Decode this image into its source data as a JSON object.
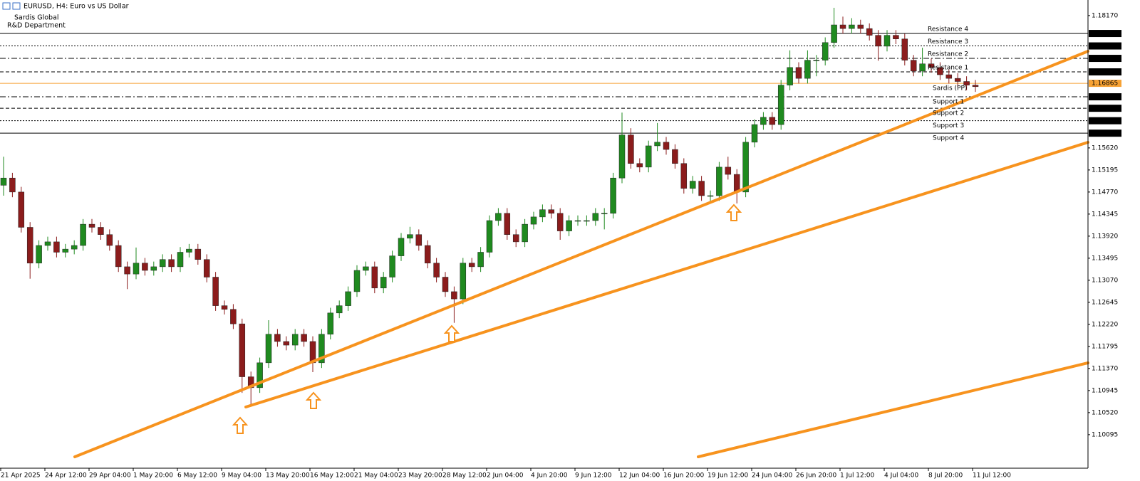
{
  "chart_data": {
    "type": "candlestick",
    "title": "EURUSD, H4:  Euro vs US Dollar",
    "brand": "Sardis Global",
    "department": "R&D Department",
    "up_color": "#1f8a1f",
    "down_color": "#8b1c1c",
    "categories": [
      "21 Apr 2025",
      null,
      null,
      null,
      null,
      "24 Apr 12:00",
      null,
      null,
      null,
      null,
      "29 Apr 04:00",
      null,
      null,
      null,
      null,
      "1 May 20:00",
      null,
      null,
      null,
      null,
      "6 May 12:00",
      null,
      null,
      null,
      null,
      "9 May 04:00",
      null,
      null,
      null,
      null,
      "13 May 20:00",
      null,
      null,
      null,
      null,
      "16 May 12:00",
      null,
      null,
      null,
      null,
      "21 May 04:00",
      null,
      null,
      null,
      null,
      "23 May 20:00",
      null,
      null,
      null,
      null,
      "28 May 12:00",
      null,
      null,
      null,
      null,
      "2 Jun 04:00",
      null,
      null,
      null,
      null,
      "4 Jun 20:00",
      null,
      null,
      null,
      null,
      "9 Jun 12:00",
      null,
      null,
      null,
      null,
      "12 Jun 04:00",
      null,
      null,
      null,
      null,
      "16 Jun 20:00",
      null,
      null,
      null,
      null,
      "19 Jun 12:00",
      null,
      null,
      null,
      null,
      "24 Jun 04:00",
      null,
      null,
      null,
      null,
      "26 Jun 20:00",
      null,
      null,
      null,
      null,
      "1 Jul 12:00",
      null,
      null,
      null,
      null,
      "4 Jul 04:00",
      null,
      null,
      null,
      null,
      "8 Jul 20:00",
      null,
      null,
      null,
      null,
      "11 Jul 12:00"
    ],
    "open": [
      1.149,
      1.1504,
      1.1477,
      1.1409,
      1.134,
      1.1374,
      1.1381,
      1.1361,
      1.1367,
      1.1374,
      1.1415,
      1.1409,
      1.1395,
      1.1374,
      1.1333,
      1.1319,
      1.134,
      1.1326,
      1.1333,
      1.1347,
      1.1333,
      1.1361,
      1.1367,
      1.1347,
      1.1313,
      1.1258,
      1.1251,
      1.1223,
      1.1121,
      1.11,
      1.1148,
      1.1203,
      1.1189,
      1.1182,
      1.1203,
      1.1189,
      1.1148,
      1.1203,
      1.1244,
      1.1258,
      1.1285,
      1.1326,
      1.1333,
      1.1292,
      1.1313,
      1.1354,
      1.1388,
      1.1395,
      1.1374,
      1.134,
      1.1313,
      1.1285,
      1.1271,
      1.134,
      1.1333,
      1.1361,
      1.1422,
      1.1436,
      1.1395,
      1.1381,
      1.1415,
      1.1429,
      1.1443,
      1.1436,
      1.1402,
      1.1422,
      1.1422,
      1.1422,
      1.1436,
      1.1436,
      1.1504,
      1.1587,
      1.1532,
      1.1525,
      1.1566,
      1.1573,
      1.1559,
      1.1532,
      1.1484,
      1.1498,
      1.147,
      1.147,
      1.1525,
      1.1511,
      1.1477,
      1.1573,
      1.1607,
      1.1621,
      1.1607,
      1.1683,
      1.1717,
      1.1696,
      1.1731,
      1.1731,
      1.1765,
      1.1799,
      1.1792,
      1.1799,
      1.1792,
      1.1779,
      1.1758,
      1.1779,
      1.1772,
      1.1731,
      1.171,
      1.1724,
      1.1717,
      1.1703,
      1.1696,
      1.169,
      1.1683
    ],
    "high": [
      1.1545,
      1.1514,
      1.1487,
      1.1419,
      1.1384,
      1.1391,
      1.1391,
      1.1377,
      1.1384,
      1.1425,
      1.1425,
      1.1419,
      1.1405,
      1.1384,
      1.1343,
      1.137,
      1.135,
      1.1343,
      1.1357,
      1.1357,
      1.1371,
      1.1377,
      1.1377,
      1.1357,
      1.1323,
      1.1268,
      1.1261,
      1.1233,
      1.1131,
      1.1158,
      1.123,
      1.1213,
      1.1199,
      1.1213,
      1.1213,
      1.1199,
      1.1213,
      1.1254,
      1.1268,
      1.1295,
      1.1336,
      1.1343,
      1.1343,
      1.1323,
      1.1364,
      1.1398,
      1.141,
      1.1405,
      1.1384,
      1.135,
      1.1323,
      1.1295,
      1.135,
      1.135,
      1.1371,
      1.1432,
      1.1446,
      1.1446,
      1.1405,
      1.1425,
      1.1439,
      1.1453,
      1.1453,
      1.1446,
      1.1432,
      1.1432,
      1.1432,
      1.1446,
      1.1446,
      1.1514,
      1.163,
      1.16,
      1.1542,
      1.1576,
      1.161,
      1.1583,
      1.1569,
      1.1542,
      1.1508,
      1.1508,
      1.148,
      1.1535,
      1.1545,
      1.1521,
      1.1583,
      1.1617,
      1.1631,
      1.1631,
      1.1693,
      1.175,
      1.1727,
      1.175,
      1.1741,
      1.1775,
      1.1832,
      1.1815,
      1.1812,
      1.1809,
      1.1802,
      1.1789,
      1.1789,
      1.1789,
      1.1782,
      1.1741,
      1.1755,
      1.1734,
      1.1727,
      1.1713,
      1.1706,
      1.17,
      1.1693
    ],
    "low": [
      1.147,
      1.1467,
      1.1399,
      1.131,
      1.133,
      1.1364,
      1.1351,
      1.1351,
      1.1357,
      1.1364,
      1.1399,
      1.1385,
      1.1364,
      1.1323,
      1.129,
      1.1309,
      1.1316,
      1.1316,
      1.1323,
      1.1323,
      1.1323,
      1.1351,
      1.1337,
      1.1303,
      1.1248,
      1.1241,
      1.1213,
      1.109,
      1.1065,
      1.109,
      1.1138,
      1.1179,
      1.1172,
      1.1172,
      1.1179,
      1.113,
      1.1138,
      1.1193,
      1.1234,
      1.1248,
      1.1275,
      1.1316,
      1.1282,
      1.1282,
      1.1303,
      1.1344,
      1.1378,
      1.1364,
      1.133,
      1.1303,
      1.1275,
      1.1225,
      1.1261,
      1.1323,
      1.1323,
      1.1351,
      1.1412,
      1.1385,
      1.1371,
      1.1371,
      1.1405,
      1.1419,
      1.1426,
      1.1385,
      1.1392,
      1.1412,
      1.1412,
      1.1412,
      1.1405,
      1.1426,
      1.1494,
      1.1522,
      1.1515,
      1.1515,
      1.1556,
      1.1549,
      1.1522,
      1.1474,
      1.1474,
      1.146,
      1.1455,
      1.146,
      1.1501,
      1.1455,
      1.1467,
      1.1563,
      1.1597,
      1.1597,
      1.1597,
      1.1673,
      1.1686,
      1.1686,
      1.17,
      1.1721,
      1.1755,
      1.1782,
      1.1782,
      1.1782,
      1.1769,
      1.173,
      1.1748,
      1.1762,
      1.1721,
      1.17,
      1.17,
      1.1707,
      1.1693,
      1.1686,
      1.168,
      1.1673,
      1.167
    ],
    "close": [
      1.1504,
      1.1477,
      1.1409,
      1.134,
      1.1374,
      1.1381,
      1.1361,
      1.1367,
      1.1374,
      1.1415,
      1.1409,
      1.1395,
      1.1374,
      1.1333,
      1.1319,
      1.134,
      1.1326,
      1.1333,
      1.1347,
      1.1333,
      1.1361,
      1.1367,
      1.1347,
      1.1313,
      1.1258,
      1.1251,
      1.1223,
      1.1121,
      1.11,
      1.1148,
      1.1203,
      1.1189,
      1.1182,
      1.1203,
      1.1189,
      1.1148,
      1.1203,
      1.1244,
      1.1258,
      1.1285,
      1.1326,
      1.1333,
      1.1292,
      1.1313,
      1.1354,
      1.1388,
      1.1395,
      1.1374,
      1.134,
      1.1313,
      1.1285,
      1.1271,
      1.134,
      1.1333,
      1.1361,
      1.1422,
      1.1436,
      1.1395,
      1.1381,
      1.1415,
      1.1429,
      1.1443,
      1.1436,
      1.1402,
      1.1422,
      1.1422,
      1.1422,
      1.1436,
      1.1436,
      1.1504,
      1.1587,
      1.1532,
      1.1525,
      1.1566,
      1.1573,
      1.1559,
      1.1532,
      1.1484,
      1.1498,
      1.147,
      1.147,
      1.1525,
      1.1511,
      1.1477,
      1.1573,
      1.1607,
      1.1621,
      1.1607,
      1.1683,
      1.1717,
      1.1696,
      1.1731,
      1.1731,
      1.1765,
      1.1799,
      1.1792,
      1.1799,
      1.1792,
      1.1779,
      1.1758,
      1.1779,
      1.1772,
      1.1731,
      1.171,
      1.1724,
      1.1717,
      1.1703,
      1.1696,
      1.169,
      1.1683,
      1.168
    ],
    "ylim": [
      1.0949,
      1.1847
    ],
    "yticks": [
      {
        "value": 1.1817,
        "label": "1.18170"
      },
      {
        "value": 1.1562,
        "label": "1.15620"
      },
      1.15195,
      {
        "value": 1.1477,
        "label": "1.14770"
      },
      1.14345,
      {
        "value": 1.1392,
        "label": "1.13920"
      },
      1.13495,
      {
        "value": 1.1307,
        "label": "1.13070"
      },
      1.12645,
      {
        "value": 1.1222,
        "label": "1.12220"
      },
      1.11795,
      {
        "value": 1.1137,
        "label": "1.11370"
      },
      1.10945,
      {
        "value": 1.1052,
        "label": "1.10520"
      },
      1.10095
    ],
    "levels": [
      {
        "name": "Resistance 4",
        "value": 1.17825,
        "style": "solid",
        "color": "#000000",
        "side": "above"
      },
      {
        "name": "Resistance 3",
        "value": 1.17585,
        "style": "dotted",
        "color": "#000000",
        "side": "above"
      },
      {
        "name": "Resistance 2",
        "value": 1.17345,
        "style": "dashdot",
        "color": "#000000",
        "side": "above"
      },
      {
        "name": "Resistance 1",
        "value": 1.17085,
        "style": "dashed",
        "color": "#000000",
        "side": "above"
      },
      {
        "name": "Sardis (PP)",
        "value": 1.16865,
        "style": "solid",
        "color": "#f7a234",
        "side": "below"
      },
      {
        "name": "Support 1",
        "value": 1.16605,
        "style": "dashdot",
        "color": "#000000",
        "side": "below"
      },
      {
        "name": "Support 2",
        "value": 1.16384,
        "style": "dashed",
        "color": "#000000",
        "side": "below"
      },
      {
        "name": "Support 3",
        "value": 1.16144,
        "style": "dotted",
        "color": "#000000",
        "side": "below"
      },
      {
        "name": "Support 4",
        "value": 1.15904,
        "style": "solid",
        "color": "#000000",
        "side": "below"
      }
    ]
  }
}
